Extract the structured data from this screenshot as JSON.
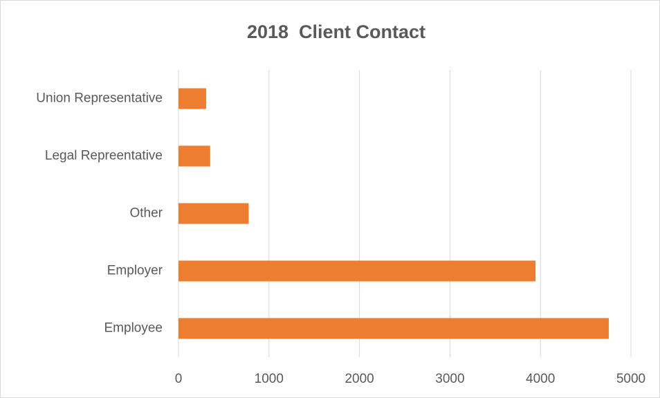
{
  "chart_data": {
    "type": "bar",
    "orientation": "horizontal",
    "title": "2018  Client Contact",
    "categories": [
      "Union Representative",
      "Legal Repreentative",
      "Other",
      "Employer",
      "Employee"
    ],
    "values": [
      305,
      350,
      775,
      3945,
      4755
    ],
    "color": "#ed7d31",
    "xlim": [
      0,
      5000
    ],
    "xticks": [
      0,
      1000,
      2000,
      3000,
      4000,
      5000
    ],
    "grid": true
  }
}
